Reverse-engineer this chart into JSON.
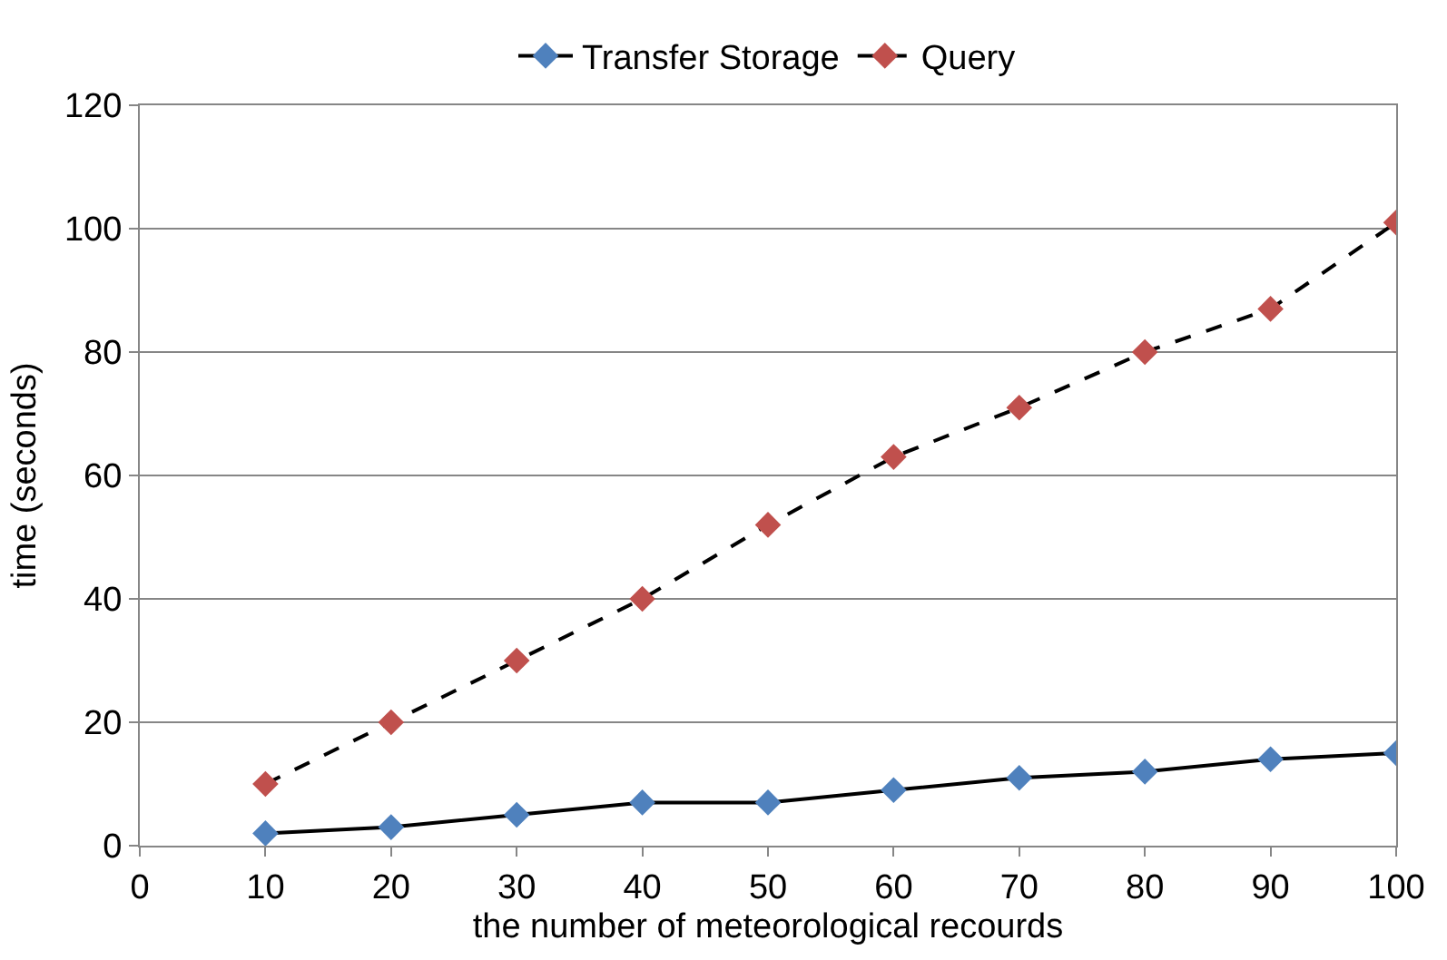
{
  "chart_data": {
    "type": "line",
    "xlabel": "the number of meteorological recourds",
    "ylabel": "time (seconds)",
    "x": [
      10,
      20,
      30,
      40,
      50,
      60,
      70,
      80,
      90,
      100
    ],
    "series": [
      {
        "name": "Transfer Storage",
        "color": "#4f81bd",
        "line_style": "solid",
        "values": [
          2,
          3,
          5,
          7,
          7,
          9,
          11,
          12,
          14,
          15
        ]
      },
      {
        "name": "Query",
        "color": "#c0504d",
        "line_style": "dashed",
        "values": [
          10,
          20,
          30,
          40,
          52,
          63,
          71,
          80,
          87,
          101
        ]
      }
    ],
    "xlim": [
      0,
      100
    ],
    "xticks": [
      0,
      10,
      20,
      30,
      40,
      50,
      60,
      70,
      80,
      90,
      100
    ],
    "ylim": [
      0,
      120
    ],
    "yticks": [
      0,
      20,
      40,
      60,
      80,
      100,
      120
    ],
    "grid": "y",
    "legend": "top",
    "marker": "diamond"
  }
}
